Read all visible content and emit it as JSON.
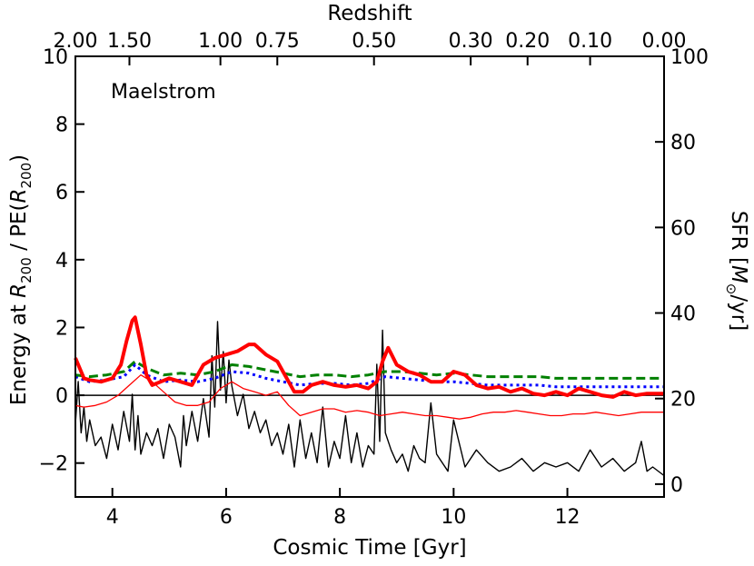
{
  "chart_data": {
    "type": "line",
    "annotation": "Maelstrom",
    "xlabel": "Cosmic Time [Gyr]",
    "ylabel_left_prefix": "Energy at ",
    "ylabel_left_r": "R",
    "ylabel_left_sub": "200",
    "ylabel_left_mid": " / PE(",
    "ylabel_left_r2": "R",
    "ylabel_left_sub2": "200",
    "ylabel_left_end": ")",
    "ylabel_right_prefix": "SFR [",
    "ylabel_right_m": "M",
    "ylabel_right_sun": "⊙",
    "ylabel_right_end": "/yr]",
    "xlabel_top": "Redshift",
    "xlim": [
      3.35,
      13.7
    ],
    "ylim_left": [
      -3,
      10
    ],
    "ylim_right": [
      -3,
      100
    ],
    "x_ticks": [
      "4",
      "6",
      "8",
      "10",
      "12"
    ],
    "x_tick_values": [
      4,
      6,
      8,
      10,
      12
    ],
    "y_left_ticks": [
      "−2",
      "0",
      "2",
      "4",
      "6",
      "8",
      "10"
    ],
    "y_left_tick_values": [
      -2,
      0,
      2,
      4,
      6,
      8,
      10
    ],
    "y_right_ticks": [
      "0",
      "20",
      "40",
      "60",
      "80",
      "100"
    ],
    "y_right_tick_values": [
      0,
      20,
      40,
      60,
      80,
      100
    ],
    "top_ticks": [
      "2.00",
      "1.50",
      "1.00",
      "0.75",
      "0.50",
      "0.30",
      "0.20",
      "0.10",
      "0.00"
    ],
    "top_tick_times": [
      3.3,
      4.3,
      5.9,
      6.9,
      8.6,
      10.3,
      11.3,
      12.4,
      13.7
    ],
    "reference_line_y": 0,
    "series": [
      {
        "color": "#ff0000",
        "style": "thick-solid",
        "x": [
          3.35,
          3.5,
          3.6,
          3.8,
          4.0,
          4.15,
          4.25,
          4.35,
          4.4,
          4.5,
          4.6,
          4.7,
          4.85,
          5.0,
          5.2,
          5.4,
          5.6,
          5.8,
          6.0,
          6.2,
          6.4,
          6.5,
          6.7,
          6.9,
          7.0,
          7.2,
          7.35,
          7.5,
          7.7,
          7.9,
          8.1,
          8.3,
          8.5,
          8.65,
          8.75,
          8.85,
          9.0,
          9.2,
          9.4,
          9.6,
          9.8,
          10.0,
          10.2,
          10.4,
          10.6,
          10.8,
          11.0,
          11.2,
          11.4,
          11.6,
          11.8,
          12.0,
          12.2,
          12.4,
          12.6,
          12.8,
          13.0,
          13.2,
          13.4,
          13.7
        ],
        "values": [
          1.1,
          0.5,
          0.45,
          0.4,
          0.5,
          0.9,
          1.6,
          2.2,
          2.3,
          1.5,
          0.6,
          0.3,
          0.4,
          0.5,
          0.4,
          0.3,
          0.9,
          1.1,
          1.2,
          1.3,
          1.5,
          1.5,
          1.2,
          1.0,
          0.7,
          0.1,
          0.1,
          0.3,
          0.4,
          0.3,
          0.25,
          0.3,
          0.2,
          0.4,
          1.0,
          1.4,
          0.9,
          0.7,
          0.6,
          0.4,
          0.4,
          0.7,
          0.6,
          0.3,
          0.2,
          0.25,
          0.1,
          0.2,
          0.05,
          0.0,
          0.1,
          0.0,
          0.2,
          0.1,
          0.0,
          -0.05,
          0.1,
          0.0,
          0.05,
          0.05
        ]
      },
      {
        "color": "#008000",
        "style": "dashed",
        "x": [
          3.35,
          3.6,
          3.9,
          4.2,
          4.4,
          4.6,
          4.9,
          5.2,
          5.5,
          5.8,
          6.1,
          6.4,
          6.7,
          7.0,
          7.3,
          7.6,
          7.9,
          8.2,
          8.5,
          8.8,
          9.1,
          9.4,
          9.7,
          10.0,
          10.3,
          10.6,
          10.9,
          11.2,
          11.5,
          11.8,
          12.1,
          12.4,
          12.7,
          13.0,
          13.3,
          13.7
        ],
        "values": [
          0.6,
          0.55,
          0.6,
          0.7,
          1.0,
          0.8,
          0.6,
          0.65,
          0.6,
          0.7,
          0.9,
          0.85,
          0.75,
          0.65,
          0.55,
          0.6,
          0.6,
          0.55,
          0.6,
          0.7,
          0.7,
          0.65,
          0.6,
          0.65,
          0.6,
          0.55,
          0.55,
          0.55,
          0.55,
          0.5,
          0.5,
          0.5,
          0.5,
          0.5,
          0.5,
          0.5
        ]
      },
      {
        "color": "#0000ff",
        "style": "dotted",
        "x": [
          3.35,
          3.6,
          3.9,
          4.2,
          4.4,
          4.6,
          4.9,
          5.2,
          5.5,
          5.8,
          6.1,
          6.4,
          6.7,
          7.0,
          7.3,
          7.6,
          7.9,
          8.2,
          8.5,
          8.8,
          9.1,
          9.4,
          9.7,
          10.0,
          10.3,
          10.6,
          10.9,
          11.2,
          11.5,
          11.8,
          12.1,
          12.4,
          12.7,
          13.0,
          13.3,
          13.7
        ],
        "values": [
          0.55,
          0.4,
          0.45,
          0.55,
          0.9,
          0.6,
          0.4,
          0.45,
          0.4,
          0.5,
          0.7,
          0.65,
          0.5,
          0.4,
          0.3,
          0.35,
          0.35,
          0.3,
          0.35,
          0.55,
          0.5,
          0.45,
          0.4,
          0.4,
          0.35,
          0.3,
          0.3,
          0.3,
          0.3,
          0.25,
          0.25,
          0.25,
          0.25,
          0.25,
          0.25,
          0.25
        ]
      },
      {
        "color": "#ff0000",
        "style": "thin-solid",
        "x": [
          3.35,
          3.5,
          3.7,
          3.9,
          4.1,
          4.3,
          4.5,
          4.7,
          4.9,
          5.1,
          5.3,
          5.5,
          5.7,
          5.9,
          6.1,
          6.3,
          6.5,
          6.7,
          6.9,
          7.1,
          7.3,
          7.5,
          7.7,
          7.9,
          8.1,
          8.3,
          8.5,
          8.7,
          8.9,
          9.1,
          9.3,
          9.5,
          9.7,
          9.9,
          10.1,
          10.3,
          10.5,
          10.7,
          10.9,
          11.1,
          11.3,
          11.5,
          11.7,
          11.9,
          12.1,
          12.3,
          12.5,
          12.7,
          12.9,
          13.1,
          13.3,
          13.5,
          13.7
        ],
        "values": [
          -0.3,
          -0.35,
          -0.3,
          -0.2,
          0.0,
          0.3,
          0.6,
          0.4,
          0.1,
          -0.2,
          -0.3,
          -0.3,
          -0.2,
          0.2,
          0.4,
          0.2,
          0.1,
          0.0,
          0.1,
          -0.3,
          -0.6,
          -0.5,
          -0.4,
          -0.4,
          -0.5,
          -0.45,
          -0.5,
          -0.6,
          -0.55,
          -0.5,
          -0.55,
          -0.6,
          -0.6,
          -0.65,
          -0.7,
          -0.65,
          -0.55,
          -0.5,
          -0.5,
          -0.45,
          -0.5,
          -0.55,
          -0.6,
          -0.6,
          -0.55,
          -0.55,
          -0.5,
          -0.55,
          -0.6,
          -0.55,
          -0.5,
          -0.5,
          -0.5
        ]
      },
      {
        "color": "#000000",
        "style": "sfr",
        "axis": "right",
        "x": [
          3.35,
          3.4,
          3.45,
          3.5,
          3.55,
          3.6,
          3.7,
          3.8,
          3.9,
          4.0,
          4.1,
          4.2,
          4.3,
          4.35,
          4.4,
          4.45,
          4.5,
          4.6,
          4.7,
          4.8,
          4.9,
          5.0,
          5.1,
          5.2,
          5.25,
          5.3,
          5.4,
          5.5,
          5.6,
          5.7,
          5.75,
          5.8,
          5.85,
          5.9,
          5.95,
          6.0,
          6.05,
          6.1,
          6.2,
          6.3,
          6.4,
          6.5,
          6.6,
          6.7,
          6.8,
          6.9,
          7.0,
          7.1,
          7.2,
          7.3,
          7.4,
          7.5,
          7.6,
          7.7,
          7.8,
          7.9,
          8.0,
          8.1,
          8.2,
          8.3,
          8.4,
          8.5,
          8.6,
          8.65,
          8.7,
          8.75,
          8.8,
          8.9,
          9.0,
          9.1,
          9.2,
          9.3,
          9.4,
          9.5,
          9.6,
          9.7,
          9.8,
          9.9,
          10.0,
          10.2,
          10.4,
          10.6,
          10.8,
          11.0,
          11.2,
          11.4,
          11.6,
          11.8,
          12.0,
          12.2,
          12.4,
          12.6,
          12.8,
          13.0,
          13.2,
          13.3,
          13.4,
          13.5,
          13.7
        ],
        "values": [
          14,
          24,
          12,
          18,
          10,
          15,
          9,
          11,
          6,
          14,
          8,
          17,
          10,
          21,
          8,
          16,
          7,
          12,
          9,
          13,
          6,
          14,
          11,
          4,
          16,
          9,
          17,
          10,
          20,
          11,
          30,
          18,
          38,
          22,
          31,
          19,
          29,
          23,
          16,
          21,
          13,
          17,
          12,
          15,
          9,
          12,
          7,
          14,
          4,
          15,
          6,
          12,
          5,
          18,
          4,
          10,
          6,
          16,
          5,
          12,
          4,
          9,
          7,
          28,
          10,
          36,
          12,
          8,
          5,
          7,
          3,
          9,
          6,
          5,
          19,
          7,
          5,
          3,
          15,
          4,
          8,
          5,
          3,
          4,
          6,
          3,
          5,
          4,
          5,
          3,
          8,
          4,
          6,
          3,
          5,
          10,
          3,
          4,
          2
        ]
      }
    ]
  }
}
